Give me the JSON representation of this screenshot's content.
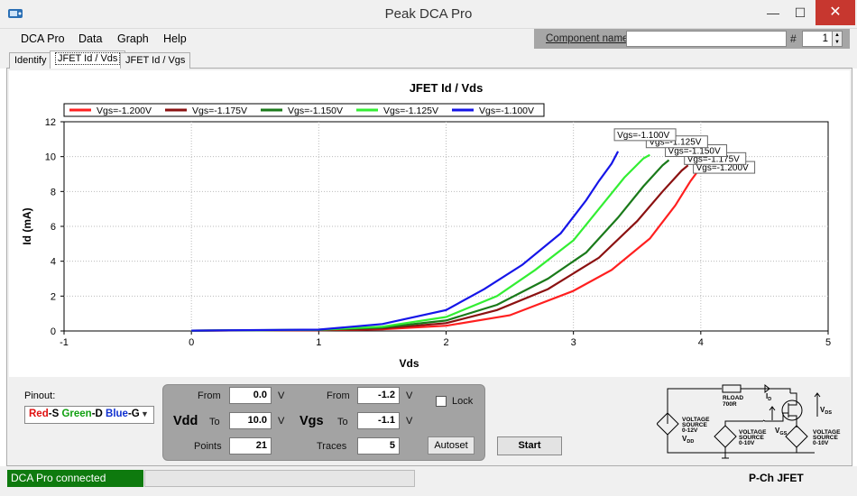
{
  "window": {
    "title": "Peak DCA Pro",
    "minimize": "—",
    "maximize": "☐",
    "close": "✕"
  },
  "menu": [
    "DCA Pro",
    "Data",
    "Graph",
    "Help"
  ],
  "component": {
    "label": "Component name",
    "value": "",
    "hash": "#",
    "count": "1"
  },
  "tabs": [
    "Identify",
    "JFET Id / Vds",
    "JFET Id / Vgs"
  ],
  "chart_data": {
    "type": "line",
    "title": "JFET Id / Vds",
    "xlabel": "Vds",
    "ylabel": "Id (mA)",
    "xlim": [
      -1,
      5
    ],
    "ylim": [
      0,
      12
    ],
    "xticks": [
      -1,
      0,
      1,
      2,
      3,
      4,
      5
    ],
    "yticks": [
      0,
      2,
      4,
      6,
      8,
      10,
      12
    ],
    "grid": true,
    "legend_position": "top",
    "series": [
      {
        "name": "Vgs=-1.200V",
        "color": "#ff1f1f",
        "label": "-1.200V",
        "points": [
          [
            0,
            0.02
          ],
          [
            1,
            0.04
          ],
          [
            1.5,
            0.1
          ],
          [
            2,
            0.3
          ],
          [
            2.5,
            0.9
          ],
          [
            3,
            2.3
          ],
          [
            3.3,
            3.5
          ],
          [
            3.6,
            5.3
          ],
          [
            3.8,
            7.2
          ],
          [
            3.92,
            8.6
          ],
          [
            3.97,
            9.1
          ]
        ]
      },
      {
        "name": "Vgs=-1.175V",
        "color": "#8b1111",
        "label": "-1.175V",
        "points": [
          [
            0,
            0.02
          ],
          [
            1,
            0.05
          ],
          [
            1.5,
            0.14
          ],
          [
            2,
            0.45
          ],
          [
            2.4,
            1.2
          ],
          [
            2.8,
            2.4
          ],
          [
            3.2,
            4.2
          ],
          [
            3.5,
            6.3
          ],
          [
            3.7,
            8.0
          ],
          [
            3.85,
            9.2
          ],
          [
            3.9,
            9.5
          ]
        ]
      },
      {
        "name": "Vgs=-1.150V",
        "color": "#1a7a1a",
        "label": "-1.150V",
        "points": [
          [
            0,
            0.02
          ],
          [
            1,
            0.06
          ],
          [
            1.5,
            0.2
          ],
          [
            2,
            0.6
          ],
          [
            2.4,
            1.5
          ],
          [
            2.8,
            3.0
          ],
          [
            3.1,
            4.5
          ],
          [
            3.35,
            6.5
          ],
          [
            3.55,
            8.3
          ],
          [
            3.7,
            9.5
          ],
          [
            3.75,
            9.8
          ]
        ]
      },
      {
        "name": "Vgs=-1.125V",
        "color": "#33ee33",
        "label": "-1.125V",
        "points": [
          [
            0,
            0.02
          ],
          [
            1,
            0.07
          ],
          [
            1.5,
            0.25
          ],
          [
            2,
            0.8
          ],
          [
            2.4,
            2.0
          ],
          [
            2.7,
            3.5
          ],
          [
            3.0,
            5.2
          ],
          [
            3.2,
            7.0
          ],
          [
            3.4,
            8.8
          ],
          [
            3.55,
            9.9
          ],
          [
            3.6,
            10.1
          ]
        ]
      },
      {
        "name": "Vgs=-1.100V",
        "color": "#1515e8",
        "label": "-1.100V",
        "points": [
          [
            0,
            0.02
          ],
          [
            1,
            0.08
          ],
          [
            1.5,
            0.4
          ],
          [
            2,
            1.2
          ],
          [
            2.3,
            2.4
          ],
          [
            2.6,
            3.8
          ],
          [
            2.9,
            5.6
          ],
          [
            3.1,
            7.5
          ],
          [
            3.2,
            8.6
          ],
          [
            3.3,
            9.6
          ],
          [
            3.35,
            10.3
          ]
        ]
      }
    ]
  },
  "controls": {
    "pinout_label": "Pinout:",
    "pinout": [
      {
        "text": "Red",
        "color": "#e01010"
      },
      {
        "text": "-S ",
        "color": "#000"
      },
      {
        "text": "Green",
        "color": "#10a010"
      },
      {
        "text": "-D ",
        "color": "#000"
      },
      {
        "text": "Blue",
        "color": "#1030d0"
      },
      {
        "text": "-G",
        "color": "#000"
      }
    ],
    "vdd": {
      "name": "Vdd",
      "from_label": "From",
      "to_label": "To",
      "points_label": "Points",
      "from": "0.0",
      "to": "10.0",
      "points": "21",
      "unit": "V"
    },
    "vgs": {
      "name": "Vgs",
      "from_label": "From",
      "to_label": "To",
      "traces_label": "Traces",
      "from": "-1.2",
      "to": "-1.1",
      "traces": "5",
      "unit": "V"
    },
    "lock": "Lock",
    "autoset": "Autoset",
    "start": "Start"
  },
  "schematic": {
    "rload": "RLOAD",
    "rload_val": "700R",
    "id": "I",
    "id_sub": "D",
    "vds": "V",
    "vds_sub": "DS",
    "vgs": "V",
    "vgs_sub": "GS",
    "src1": [
      "VOLTAGE",
      "SOURCE",
      "0-12V"
    ],
    "vdd": "V",
    "vdd_sub": "DD",
    "src2": [
      "VOLTAGE",
      "SOURCE",
      "0-10V"
    ],
    "src3": [
      "VOLTAGE",
      "SOURCE",
      "0-10V"
    ]
  },
  "status": {
    "connection": "DCA Pro connected",
    "device": "P-Ch JFET"
  }
}
